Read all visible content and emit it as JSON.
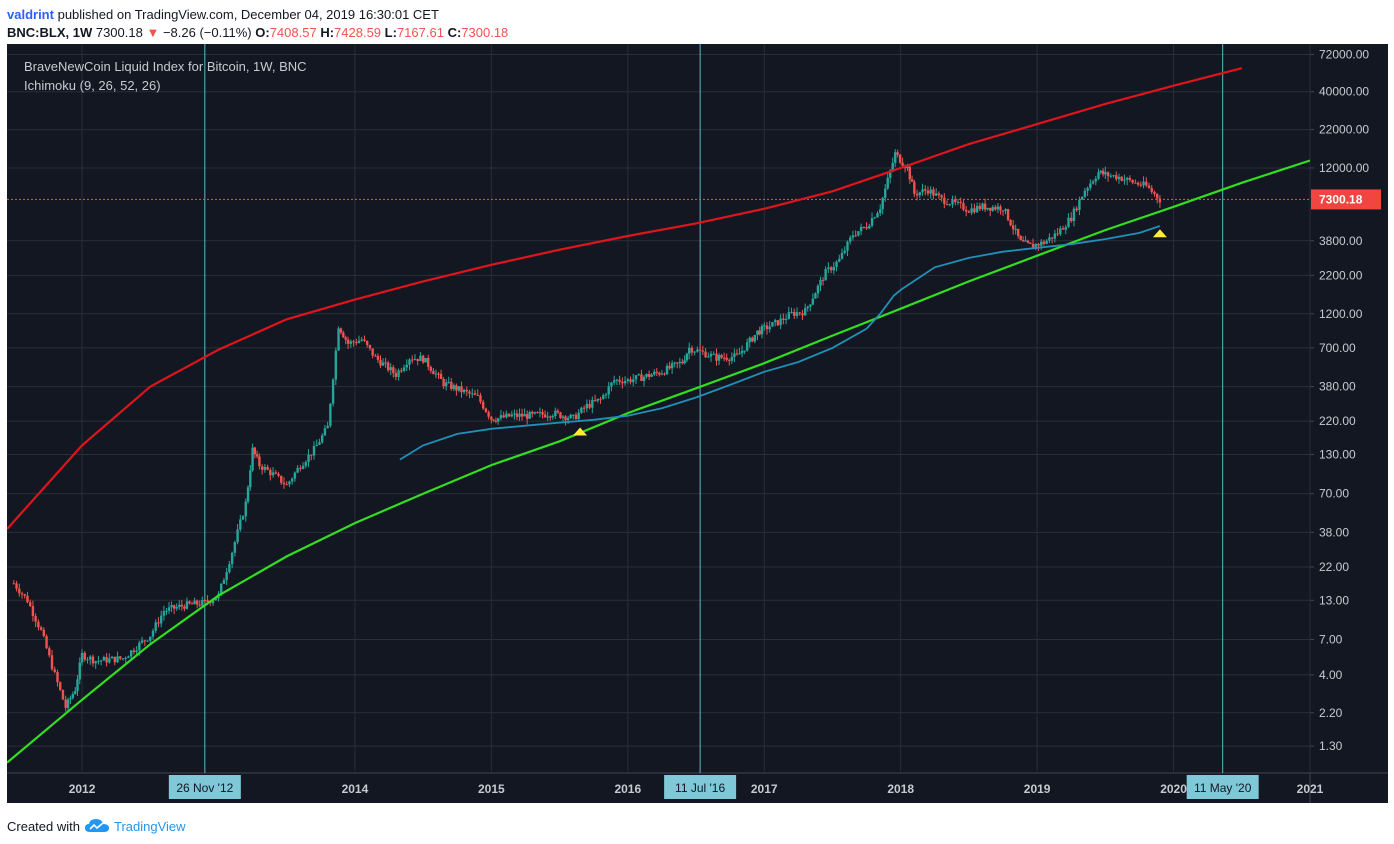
{
  "header": {
    "user": "valdrint",
    "published": "published on TradingView.com, December 04, 2019 16:30:01 CET"
  },
  "ohlc": {
    "symbol": "BNC:BLX, 1W",
    "last": "7300.18",
    "change": "−8.26 (−0.11%)",
    "o_label": "O:",
    "o": "7408.57",
    "h_label": "H:",
    "h": "7428.59",
    "l_label": "L:",
    "l": "7167.61",
    "c_label": "C:",
    "c": "7300.18"
  },
  "legend": {
    "title": "BraveNewCoin Liquid Index for Bitcoin, 1W, BNC",
    "indicator": "Ichimoku (9, 26, 52, 26)"
  },
  "footer": {
    "created": "Created with",
    "brand": "TradingView"
  },
  "colors": {
    "background": "#131722",
    "grid": "#2a2e39",
    "up": "#26a69a",
    "down": "#ef5350",
    "upper_curve": "#e0141c",
    "lower_curve": "#33dd1f",
    "ichimoku_line": "#2090b8",
    "cycle_line": "#5fb8c9",
    "marker": "#ffeb3b",
    "price_label": "#f24542",
    "axis_text": "#c8cad1",
    "date_badge": "#7ec8d8"
  },
  "chart_data": {
    "type": "line",
    "title": "BraveNewCoin Liquid Index for Bitcoin, 1W, BNC",
    "y_scale": "log",
    "y_ticks": [
      "72000.00",
      "40000.00",
      "22000.00",
      "12000.00",
      "3800.00",
      "2200.00",
      "1200.00",
      "700.00",
      "380.00",
      "220.00",
      "130.00",
      "70.00",
      "38.00",
      "22.00",
      "13.00",
      "7.00",
      "4.00",
      "2.20",
      "1.30"
    ],
    "y_tick_values": [
      72000,
      40000,
      22000,
      12000,
      3800,
      2200,
      1200,
      700,
      380,
      220,
      130,
      70,
      38,
      22,
      13,
      7,
      4,
      2.2,
      1.3
    ],
    "x_ticks": [
      "2012",
      "2014",
      "2015",
      "2016",
      "2017",
      "2018",
      "2019",
      "2020",
      "2021"
    ],
    "x_tick_values": [
      2012.0,
      2014.0,
      2015.0,
      2016.0,
      2017.0,
      2018.0,
      2019.0,
      2020.0,
      2021.0
    ],
    "x_range": [
      2011.45,
      2021.0
    ],
    "y_range": [
      0.85,
      85000
    ],
    "current_price": {
      "value": 7300.18,
      "label": "7300.18"
    },
    "vertical_markers": [
      {
        "label": "26 Nov '12",
        "x": 2012.9
      },
      {
        "label": "11 Jul '16",
        "x": 2016.53
      },
      {
        "label": "11 May '20",
        "x": 2020.36
      }
    ],
    "series": [
      {
        "role": "price",
        "x": [
          2011.5,
          2011.6,
          2011.7,
          2011.8,
          2011.88,
          2011.95,
          2012.0,
          2012.1,
          2012.3,
          2012.5,
          2012.6,
          2012.75,
          2012.9,
          2013.0,
          2013.1,
          2013.2,
          2013.25,
          2013.3,
          2013.4,
          2013.5,
          2013.6,
          2013.7,
          2013.8,
          2013.88,
          2013.95,
          2014.05,
          2014.15,
          2014.3,
          2014.4,
          2014.5,
          2014.65,
          2014.8,
          2014.9,
          2015.0,
          2015.05,
          2015.15,
          2015.3,
          2015.45,
          2015.6,
          2015.7,
          2015.8,
          2015.9,
          2016.0,
          2016.1,
          2016.25,
          2016.4,
          2016.45,
          2016.55,
          2016.65,
          2016.8,
          2016.95,
          2017.0,
          2017.1,
          2017.2,
          2017.3,
          2017.45,
          2017.55,
          2017.65,
          2017.75,
          2017.85,
          2017.96,
          2018.05,
          2018.1,
          2018.2,
          2018.3,
          2018.4,
          2018.5,
          2018.6,
          2018.75,
          2018.88,
          2018.95,
          2019.05,
          2019.15,
          2019.25,
          2019.35,
          2019.45,
          2019.5,
          2019.6,
          2019.7,
          2019.8,
          2019.9
        ],
        "y": [
          17,
          13,
          8,
          4,
          2.4,
          3.2,
          5.5,
          5,
          5.2,
          7.5,
          11,
          12,
          12.5,
          14,
          28,
          60,
          140,
          110,
          95,
          80,
          110,
          140,
          200,
          1000,
          750,
          800,
          600,
          460,
          600,
          590,
          400,
          350,
          320,
          230,
          230,
          240,
          240,
          250,
          230,
          280,
          310,
          420,
          420,
          440,
          480,
          560,
          700,
          650,
          600,
          610,
          900,
          950,
          1050,
          1200,
          1250,
          2300,
          2800,
          4200,
          4800,
          6500,
          15000,
          12000,
          8000,
          8500,
          7300,
          6800,
          6200,
          6500,
          6400,
          3700,
          3500,
          3700,
          4300,
          5500,
          8500,
          11200,
          10800,
          10400,
          9600,
          9000,
          7300
        ]
      },
      {
        "role": "upper curve",
        "x": [
          2011.45,
          2012.0,
          2012.5,
          2013.0,
          2013.5,
          2014.0,
          2014.5,
          2015.0,
          2015.5,
          2016.0,
          2016.5,
          2017.0,
          2017.5,
          2018.0,
          2018.5,
          2019.0,
          2019.5,
          2020.0,
          2020.5
        ],
        "y": [
          40,
          150,
          380,
          680,
          1100,
          1500,
          2000,
          2600,
          3300,
          4100,
          5000,
          6300,
          8300,
          12000,
          17500,
          24000,
          33000,
          44000,
          58000
        ]
      },
      {
        "role": "lower curve",
        "x": [
          2011.45,
          2012.0,
          2012.5,
          2013.0,
          2013.5,
          2014.0,
          2014.5,
          2015.0,
          2015.5,
          2016.0,
          2016.5,
          2017.0,
          2017.5,
          2018.0,
          2018.5,
          2019.0,
          2019.5,
          2020.0,
          2020.5,
          2021.0
        ],
        "y": [
          1.0,
          2.7,
          6.5,
          14,
          26,
          44,
          70,
          110,
          160,
          250,
          370,
          550,
          850,
          1300,
          2000,
          3000,
          4500,
          6500,
          9500,
          13500
        ]
      },
      {
        "role": "ichimoku line",
        "x": [
          2014.33,
          2014.5,
          2014.75,
          2015.0,
          2015.25,
          2015.5,
          2015.75,
          2016.0,
          2016.25,
          2016.5,
          2016.75,
          2017.0,
          2017.25,
          2017.5,
          2017.75,
          2017.85,
          2017.95,
          2018.0,
          2018.25,
          2018.5,
          2018.75,
          2019.0,
          2019.25,
          2019.5,
          2019.75,
          2019.9
        ],
        "y": [
          120,
          150,
          180,
          195,
          205,
          215,
          225,
          240,
          270,
          320,
          390,
          480,
          560,
          700,
          950,
          1200,
          1600,
          1750,
          2500,
          2900,
          3200,
          3400,
          3600,
          3900,
          4300,
          4800
        ]
      }
    ],
    "markers": [
      {
        "x": 2015.65,
        "y": 190,
        "shape": "triangle-up"
      },
      {
        "x": 2019.9,
        "y": 4350,
        "shape": "triangle-up"
      }
    ]
  }
}
